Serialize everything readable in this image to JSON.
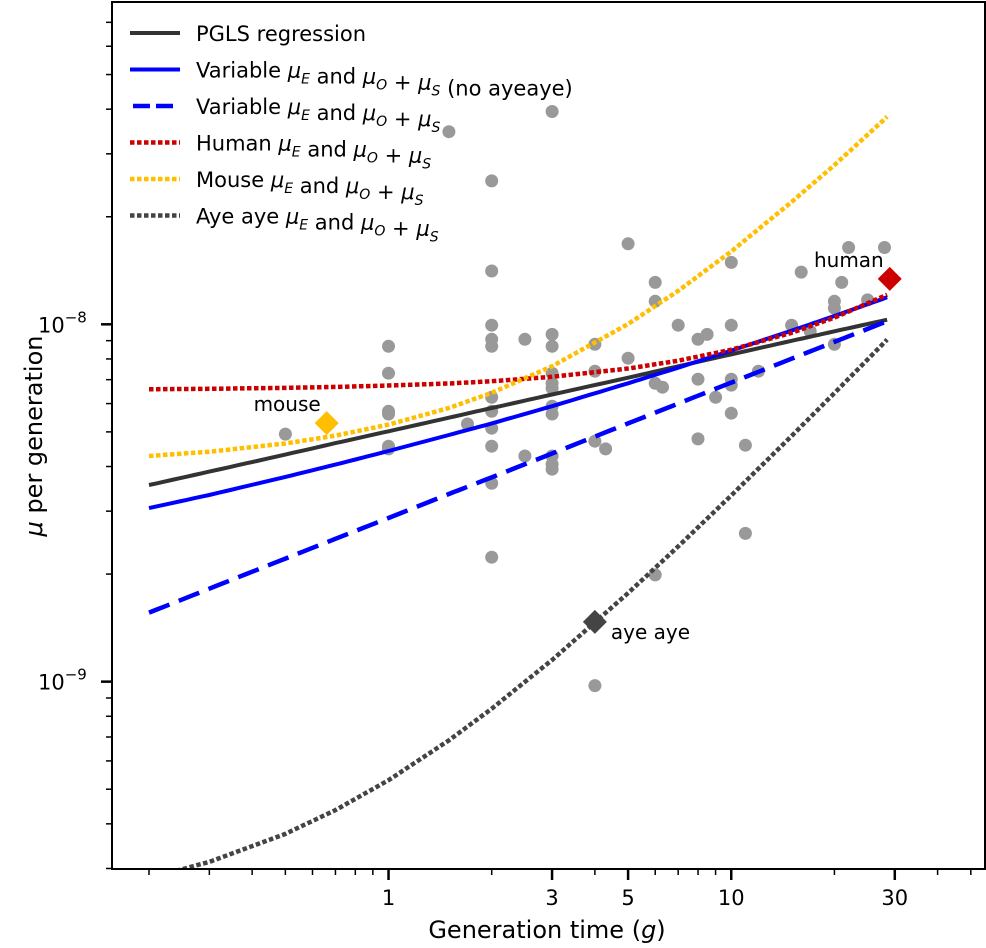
{
  "chart_data": {
    "type": "scatter",
    "title": "",
    "xlabel": "Generation time (g)",
    "ylabel": "μ per generation",
    "xscale": "log",
    "yscale": "log",
    "xlim": [
      0.156,
      55
    ],
    "ylim": [
      2.99e-10,
      7.98e-08
    ],
    "grid": false,
    "legend_position": "top-left",
    "x_ticks": [
      {
        "value": 1,
        "label": "1"
      },
      {
        "value": 3,
        "label": "3"
      },
      {
        "value": 5,
        "label": "5"
      },
      {
        "value": 10,
        "label": "10"
      },
      {
        "value": 30,
        "label": "30"
      }
    ],
    "y_ticks": [
      {
        "value": 1e-09,
        "base": "10",
        "exp": "−9"
      },
      {
        "value": 1e-08,
        "base": "10",
        "exp": "−8"
      }
    ],
    "points": {
      "name": "species",
      "color": "#999999",
      "x": [
        0.5,
        1,
        1,
        1,
        1,
        1,
        1,
        1.5,
        1.7,
        2,
        2,
        2,
        2,
        2,
        2,
        2,
        2,
        2,
        2,
        2,
        2.5,
        2.5,
        3,
        3,
        3,
        3,
        3,
        3,
        3,
        3,
        3,
        3,
        3,
        4,
        4,
        4,
        4,
        4.3,
        5,
        5,
        6,
        6,
        6,
        6,
        6.3,
        7,
        8,
        8,
        8,
        8.5,
        9,
        10,
        10,
        10,
        10,
        10,
        11,
        11,
        12,
        15,
        16,
        17,
        20,
        20,
        20,
        21,
        22,
        25,
        28
      ],
      "y": [
        4.93e-09,
        8.68e-09,
        7.3e-09,
        5.71e-09,
        5.61e-09,
        4.56e-09,
        4.48e-09,
        3.46e-08,
        5.26e-09,
        2.52e-08,
        1.41e-08,
        9.94e-09,
        9.08e-09,
        8.68e-09,
        6.25e-09,
        5.71e-09,
        5.12e-09,
        4.56e-09,
        3.59e-09,
        2.23e-09,
        9.08e-09,
        4.28e-09,
        3.94e-08,
        9.37e-09,
        8.68e-09,
        7.3e-09,
        6.84e-09,
        6.63e-09,
        5.9e-09,
        5.61e-09,
        4.28e-09,
        4.06e-09,
        3.93e-09,
        8.79e-09,
        7.39e-09,
        4.71e-09,
        9.75e-10,
        4.48e-09,
        1.68e-08,
        8.04e-09,
        1.31e-08,
        1.16e-08,
        6.84e-09,
        1.99e-09,
        6.67e-09,
        9.94e-09,
        9.08e-09,
        7.02e-09,
        4.78e-09,
        9.37e-09,
        6.25e-09,
        1.49e-08,
        9.94e-09,
        7.02e-09,
        6.76e-09,
        5.64e-09,
        4.59e-09,
        2.6e-09,
        7.39e-09,
        9.94e-09,
        1.4e-08,
        9.56e-09,
        1.16e-08,
        1.11e-08,
        8.79e-09,
        1.31e-08,
        1.64e-08,
        1.17e-08,
        1.64e-08
      ]
    },
    "series": [
      {
        "id": "pgls",
        "name": "PGLS regression",
        "color": "#333333",
        "style": "solid",
        "x": [
          0.2,
          0.3,
          0.5,
          0.7,
          1,
          1.5,
          2,
          3,
          5,
          7,
          10,
          15,
          20,
          28.5
        ],
        "y": [
          3.55e-09,
          3.87e-09,
          4.32e-09,
          4.65e-09,
          5.02e-09,
          5.48e-09,
          5.83e-09,
          6.36e-09,
          7.09e-09,
          7.63e-09,
          8.24e-09,
          8.99e-09,
          9.56e-09,
          1.03e-08
        ]
      },
      {
        "id": "variable-no-ayeaye",
        "name": "Variable μE and μO + μS (no ayeaye)",
        "color": "#0000ff",
        "style": "solid",
        "x": [
          0.2,
          0.3,
          0.5,
          0.7,
          1,
          1.5,
          2,
          3,
          5,
          7,
          10,
          15,
          20,
          28.5
        ],
        "y": [
          3.06e-09,
          3.33e-09,
          3.74e-09,
          4.05e-09,
          4.42e-09,
          4.9e-09,
          5.28e-09,
          5.9e-09,
          6.84e-09,
          7.56e-09,
          8.44e-09,
          9.6e-09,
          1.055e-08,
          1.19e-08
        ]
      },
      {
        "id": "variable",
        "name": "Variable μE and μO + μS",
        "color": "#0000ff",
        "style": "dashed",
        "x": [
          0.2,
          0.3,
          0.5,
          0.7,
          1,
          1.5,
          2,
          3,
          5,
          7,
          10,
          15,
          20,
          28.5
        ],
        "y": [
          1.56e-09,
          1.82e-09,
          2.21e-09,
          2.51e-09,
          2.87e-09,
          3.35e-09,
          3.73e-09,
          4.35e-09,
          5.28e-09,
          6e-09,
          6.87e-09,
          8.01e-09,
          8.93e-09,
          1.02e-08
        ]
      },
      {
        "id": "human",
        "name": "Human μE and μO + μS",
        "color": "#cc0000",
        "style": "dotted",
        "x": [
          0.2,
          0.3,
          0.5,
          0.7,
          1,
          1.5,
          2,
          3,
          5,
          7,
          10,
          15,
          20,
          28.5
        ],
        "y": [
          6.58e-09,
          6.6e-09,
          6.64e-09,
          6.68e-09,
          6.74e-09,
          6.83e-09,
          6.93e-09,
          7.13e-09,
          7.52e-09,
          7.91e-09,
          8.49e-09,
          9.47e-09,
          1.044e-08,
          1.21e-08
        ]
      },
      {
        "id": "mouse",
        "name": "Mouse μE and μO + μS",
        "color": "#ffbf00",
        "style": "dotted",
        "x": [
          0.2,
          0.3,
          0.5,
          0.7,
          1,
          1.5,
          2,
          3,
          5,
          7,
          10,
          15,
          20,
          28.5
        ],
        "y": [
          4.28e-09,
          4.4e-09,
          4.64e-09,
          4.88e-09,
          5.24e-09,
          5.83e-09,
          6.43e-09,
          7.63e-09,
          1.002e-08,
          1.241e-08,
          1.599e-08,
          2.2e-08,
          2.79e-08,
          3.81e-08
        ]
      },
      {
        "id": "ayeaye",
        "name": "Aye aye μE and μO + μS",
        "color": "#444444",
        "style": "dotted",
        "x": [
          0.2,
          0.3,
          0.5,
          0.7,
          1,
          1.5,
          2,
          3,
          5,
          7,
          10,
          15,
          20,
          28.5
        ],
        "y": [
          2.82e-10,
          3.13e-10,
          3.75e-10,
          4.37e-10,
          5.3e-10,
          6.85e-10,
          8.4e-10,
          1.15e-09,
          1.77e-09,
          2.39e-09,
          3.32e-09,
          4.87e-09,
          6.42e-09,
          9.06e-09
        ]
      }
    ],
    "legend": [
      {
        "series": "pgls",
        "parts": [
          {
            "t": "PGLS regression"
          }
        ]
      },
      {
        "series": "variable-no-ayeaye",
        "parts": [
          {
            "t": "Variable "
          },
          {
            "m": "μ",
            "sub": "E"
          },
          {
            "t": " and "
          },
          {
            "m": "μ",
            "sub": "O"
          },
          {
            "t": " + "
          },
          {
            "m": "μ",
            "sub": "S"
          },
          {
            "t": " (no ayeaye)"
          }
        ]
      },
      {
        "series": "variable",
        "parts": [
          {
            "t": "Variable "
          },
          {
            "m": "μ",
            "sub": "E"
          },
          {
            "t": " and "
          },
          {
            "m": "μ",
            "sub": "O"
          },
          {
            "t": " + "
          },
          {
            "m": "μ",
            "sub": "S"
          }
        ]
      },
      {
        "series": "human",
        "parts": [
          {
            "t": "Human "
          },
          {
            "m": "μ",
            "sub": "E"
          },
          {
            "t": " and "
          },
          {
            "m": "μ",
            "sub": "O"
          },
          {
            "t": " + "
          },
          {
            "m": "μ",
            "sub": "S"
          }
        ]
      },
      {
        "series": "mouse",
        "parts": [
          {
            "t": "Mouse "
          },
          {
            "m": "μ",
            "sub": "E"
          },
          {
            "t": " and "
          },
          {
            "m": "μ",
            "sub": "O"
          },
          {
            "t": " + "
          },
          {
            "m": "μ",
            "sub": "S"
          }
        ]
      },
      {
        "series": "ayeaye",
        "parts": [
          {
            "t": "Aye aye "
          },
          {
            "m": "μ",
            "sub": "E"
          },
          {
            "t": " and "
          },
          {
            "m": "μ",
            "sub": "O"
          },
          {
            "t": " + "
          },
          {
            "m": "μ",
            "sub": "S"
          }
        ]
      }
    ],
    "annotations": [
      {
        "id": "mouse",
        "label": "mouse",
        "x": 0.66,
        "y": 5.29e-09,
        "color": "#ffbf00",
        "label_side": "upper-left"
      },
      {
        "id": "human",
        "label": "human",
        "x": 29.0,
        "y": 1.34e-08,
        "color": "#cc0000",
        "label_side": "upper-left"
      },
      {
        "id": "ayeaye",
        "label": "aye aye",
        "x": 4.0,
        "y": 1.47e-09,
        "color": "#444444",
        "label_side": "lower-right"
      }
    ]
  }
}
